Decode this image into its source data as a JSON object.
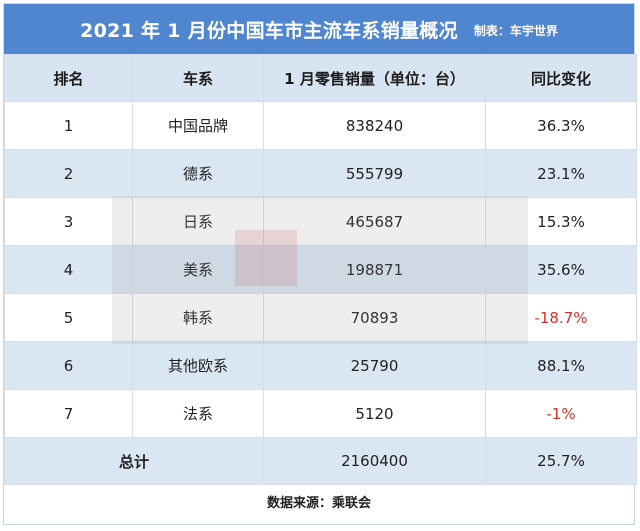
{
  "header": {
    "title": "2021 年 1 月份中国车市主流车系销量概况",
    "maker": "制表：车宇世界"
  },
  "table": {
    "columns": [
      "排名",
      "车系",
      "1 月零售销量（单位：台）",
      "同比变化"
    ],
    "rows": [
      {
        "rank": "1",
        "series": "中国品牌",
        "sales": "838240",
        "yoy": "36.3%"
      },
      {
        "rank": "2",
        "series": "德系",
        "sales": "555799",
        "yoy": "23.1%"
      },
      {
        "rank": "3",
        "series": "日系",
        "sales": "465687",
        "yoy": "15.3%"
      },
      {
        "rank": "4",
        "series": "美系",
        "sales": "198871",
        "yoy": "35.6%"
      },
      {
        "rank": "5",
        "series": "韩系",
        "sales": "70893",
        "yoy": "-18.7%"
      },
      {
        "rank": "6",
        "series": "其他欧系",
        "sales": "25790",
        "yoy": "88.1%"
      },
      {
        "rank": "7",
        "series": "法系",
        "sales": "5120",
        "yoy": "-1%"
      }
    ],
    "total": {
      "label": "总计",
      "sales": "2160400",
      "yoy": "25.7%"
    }
  },
  "footer": {
    "source": "数据来源：乘联会"
  },
  "colors": {
    "title_bg": "#4f86cf",
    "header_bg": "#d8e4f2",
    "stripe_bg": "#dbe6f3",
    "negative": "#d0312d"
  }
}
